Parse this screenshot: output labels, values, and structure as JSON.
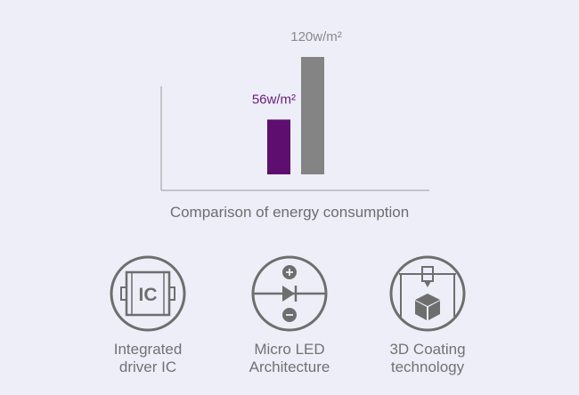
{
  "chart_data": {
    "type": "bar",
    "title": "Comparison of energy consumption",
    "categories": [
      "",
      ""
    ],
    "values": [
      56,
      120
    ],
    "data_labels": [
      "56w/m²",
      "120w/m²"
    ],
    "colors": [
      "#5e0e6e",
      "#848484"
    ],
    "label_colors": [
      "#6a1a7a",
      "#8a8a8a"
    ],
    "ylim": [
      0,
      120
    ],
    "grid": false
  },
  "features": [
    {
      "icon": "integrated-circuit-icon",
      "label_line1": "Integrated",
      "label_line2": "driver IC"
    },
    {
      "icon": "diode-icon",
      "label_line1": "Micro LED",
      "label_line2": "Architecture"
    },
    {
      "icon": "3d-printer-icon",
      "label_line1": "3D Coating",
      "label_line2": "technology"
    }
  ],
  "colors": {
    "background": "#edeef8",
    "icon_stroke": "#6e6e6e",
    "text": "#727272"
  }
}
